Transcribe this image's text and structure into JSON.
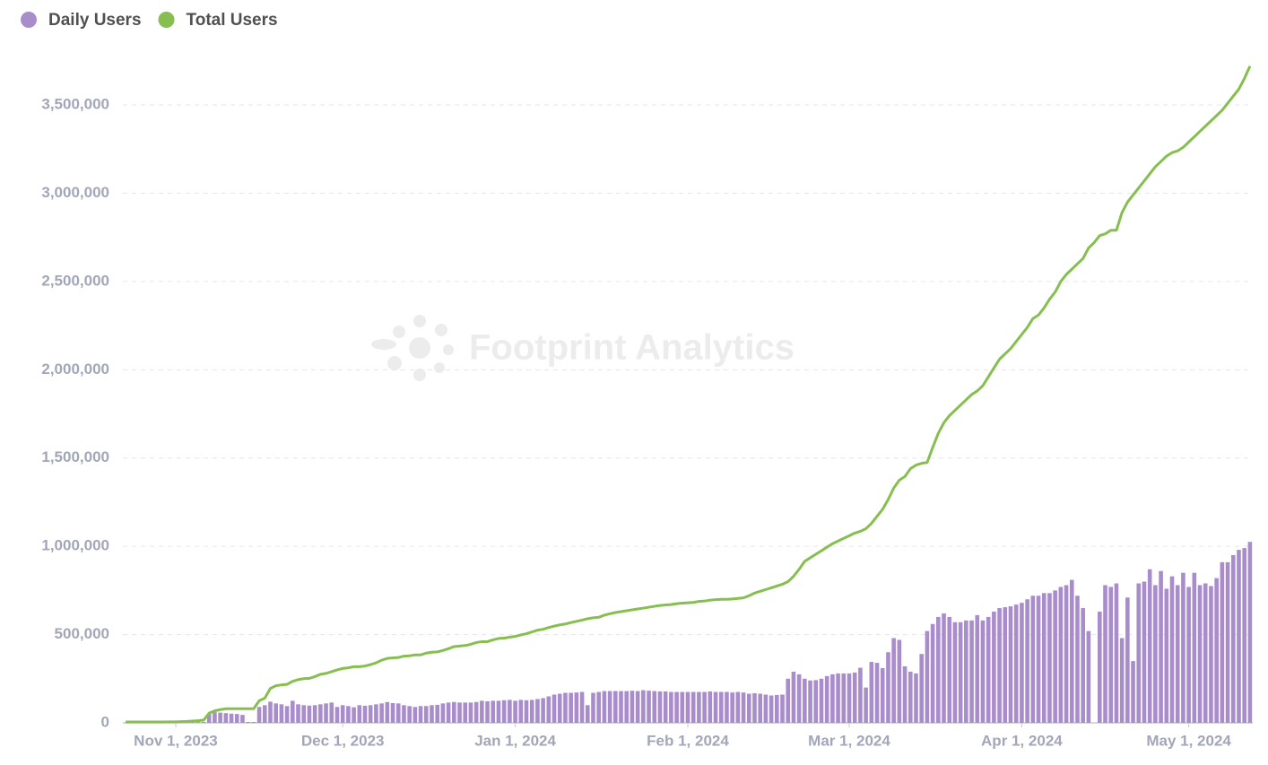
{
  "chart_data": {
    "type": "bar-line",
    "watermark": "Footprint Analytics",
    "categories": [
      null,
      null,
      null,
      null,
      null,
      null,
      null,
      null,
      null,
      "Nov 1, 2023",
      null,
      null,
      null,
      null,
      null,
      null,
      null,
      null,
      null,
      null,
      null,
      null,
      null,
      null,
      null,
      null,
      null,
      null,
      null,
      null,
      null,
      null,
      null,
      null,
      null,
      null,
      null,
      null,
      null,
      "Dec 1, 2023",
      null,
      null,
      null,
      null,
      null,
      null,
      null,
      null,
      null,
      null,
      null,
      null,
      null,
      null,
      null,
      null,
      null,
      null,
      null,
      null,
      null,
      null,
      null,
      null,
      null,
      null,
      null,
      null,
      null,
      null,
      "Jan 1, 2024",
      null,
      null,
      null,
      null,
      null,
      null,
      null,
      null,
      null,
      null,
      null,
      null,
      null,
      null,
      null,
      null,
      null,
      null,
      null,
      null,
      null,
      null,
      null,
      null,
      null,
      null,
      null,
      null,
      null,
      null,
      "Feb 1, 2024",
      null,
      null,
      null,
      null,
      null,
      null,
      null,
      null,
      null,
      null,
      null,
      null,
      null,
      null,
      null,
      null,
      null,
      null,
      null,
      null,
      null,
      null,
      null,
      null,
      null,
      null,
      null,
      null,
      "Mar 1, 2024",
      null,
      null,
      null,
      null,
      null,
      null,
      null,
      null,
      null,
      null,
      null,
      null,
      null,
      null,
      null,
      null,
      null,
      null,
      null,
      null,
      null,
      null,
      null,
      null,
      null,
      null,
      null,
      null,
      null,
      null,
      "Apr 1, 2024",
      null,
      null,
      null,
      null,
      null,
      null,
      null,
      null,
      null,
      null,
      null,
      null,
      null,
      null,
      null,
      null,
      null,
      null,
      null,
      null,
      null,
      null,
      null,
      null,
      null,
      null,
      null,
      null,
      null,
      "May 1, 2024",
      null,
      null,
      null,
      null,
      null,
      null,
      null,
      null,
      null,
      null,
      null
    ],
    "series": [
      {
        "name": "Daily Users",
        "type": "bar",
        "color": "#a98ccb",
        "values": [
          1000,
          1500,
          1000,
          2000,
          1500,
          1000,
          2000,
          1500,
          2000,
          2500,
          2000,
          3000,
          3000,
          4000,
          5000,
          50000,
          60000,
          58000,
          55000,
          52000,
          50000,
          45000,
          5000,
          5000,
          90000,
          100000,
          120000,
          110000,
          105000,
          95000,
          125000,
          105000,
          100000,
          98000,
          100000,
          105000,
          110000,
          115000,
          90000,
          100000,
          95000,
          88000,
          100000,
          97000,
          100000,
          105000,
          110000,
          118000,
          112000,
          110000,
          100000,
          95000,
          90000,
          95000,
          95000,
          100000,
          102000,
          110000,
          115000,
          118000,
          115000,
          115000,
          115000,
          118000,
          125000,
          122000,
          125000,
          125000,
          128000,
          130000,
          125000,
          130000,
          128000,
          130000,
          135000,
          140000,
          150000,
          160000,
          165000,
          170000,
          170000,
          172000,
          175000,
          100000,
          170000,
          175000,
          180000,
          180000,
          180000,
          180000,
          180000,
          182000,
          180000,
          185000,
          182000,
          180000,
          178000,
          178000,
          175000,
          175000,
          175000,
          175000,
          175000,
          175000,
          175000,
          178000,
          175000,
          175000,
          175000,
          172000,
          175000,
          172000,
          165000,
          168000,
          165000,
          160000,
          155000,
          158000,
          160000,
          250000,
          290000,
          275000,
          250000,
          240000,
          242000,
          250000,
          265000,
          275000,
          280000,
          280000,
          280000,
          285000,
          312000,
          200000,
          345000,
          340000,
          310000,
          400000,
          480000,
          470000,
          320000,
          290000,
          280000,
          390000,
          520000,
          560000,
          600000,
          620000,
          600000,
          570000,
          570000,
          580000,
          580000,
          610000,
          580000,
          600000,
          630000,
          650000,
          655000,
          660000,
          670000,
          680000,
          700000,
          720000,
          720000,
          735000,
          735000,
          750000,
          770000,
          780000,
          810000,
          720000,
          650000,
          520000,
          null,
          630000,
          780000,
          770000,
          790000,
          480000,
          710000,
          350000,
          790000,
          800000,
          870000,
          780000,
          860000,
          760000,
          830000,
          780000,
          850000,
          770000,
          850000,
          780000,
          790000,
          775000,
          820000,
          910000,
          910000,
          950000,
          980000,
          990000,
          1025000
        ]
      },
      {
        "name": "Total Users",
        "type": "line",
        "color": "#86bf50",
        "values": [
          5000,
          5000,
          5000,
          5000,
          5000,
          5000,
          5000,
          5000,
          6000,
          6000,
          7000,
          8000,
          10000,
          12000,
          15000,
          55000,
          68000,
          75000,
          80000,
          80000,
          80000,
          80000,
          80000,
          80000,
          125000,
          140000,
          195000,
          210000,
          215000,
          218000,
          235000,
          245000,
          250000,
          252000,
          262000,
          275000,
          280000,
          290000,
          300000,
          308000,
          312000,
          318000,
          318000,
          322000,
          330000,
          340000,
          355000,
          365000,
          368000,
          370000,
          378000,
          380000,
          385000,
          385000,
          395000,
          400000,
          402000,
          410000,
          420000,
          432000,
          435000,
          438000,
          445000,
          455000,
          460000,
          460000,
          470000,
          478000,
          480000,
          485000,
          490000,
          498000,
          505000,
          515000,
          525000,
          530000,
          540000,
          548000,
          555000,
          560000,
          568000,
          575000,
          582000,
          590000,
          595000,
          598000,
          610000,
          618000,
          625000,
          630000,
          635000,
          640000,
          645000,
          650000,
          655000,
          660000,
          665000,
          668000,
          670000,
          675000,
          678000,
          680000,
          682000,
          688000,
          690000,
          695000,
          698000,
          700000,
          700000,
          702000,
          705000,
          708000,
          720000,
          735000,
          745000,
          755000,
          765000,
          775000,
          785000,
          800000,
          830000,
          870000,
          915000,
          935000,
          955000,
          975000,
          995000,
          1015000,
          1030000,
          1045000,
          1060000,
          1075000,
          1085000,
          1100000,
          1130000,
          1170000,
          1210000,
          1265000,
          1330000,
          1375000,
          1395000,
          1440000,
          1460000,
          1470000,
          1475000,
          1560000,
          1640000,
          1700000,
          1740000,
          1770000,
          1800000,
          1830000,
          1860000,
          1880000,
          1910000,
          1960000,
          2010000,
          2060000,
          2090000,
          2120000,
          2160000,
          2200000,
          2240000,
          2290000,
          2310000,
          2350000,
          2400000,
          2440000,
          2500000,
          2540000,
          2570000,
          2600000,
          2630000,
          2690000,
          2720000,
          2760000,
          2770000,
          2790000,
          2790000,
          2890000,
          2950000,
          2990000,
          3030000,
          3070000,
          3110000,
          3150000,
          3180000,
          3210000,
          3230000,
          3240000,
          3260000,
          3290000,
          3320000,
          3350000,
          3380000,
          3410000,
          3440000,
          3470000,
          3510000,
          3550000,
          3590000,
          3650000,
          3720000
        ]
      }
    ],
    "ylim": [
      0,
      3800000
    ],
    "yticks": [
      0,
      {
        "value": 500000,
        "label": "500,000"
      },
      {
        "value": 1000000,
        "label": "1,000,000"
      },
      {
        "value": 1500000,
        "label": "1,500,000"
      },
      {
        "value": 2000000,
        "label": "2,000,000"
      },
      {
        "value": 2500000,
        "label": "2,500,000"
      },
      {
        "value": 3000000,
        "label": "3,000,000"
      },
      {
        "value": 3500000,
        "label": "3,500,000"
      }
    ],
    "grid": true,
    "legend": "top-left"
  }
}
